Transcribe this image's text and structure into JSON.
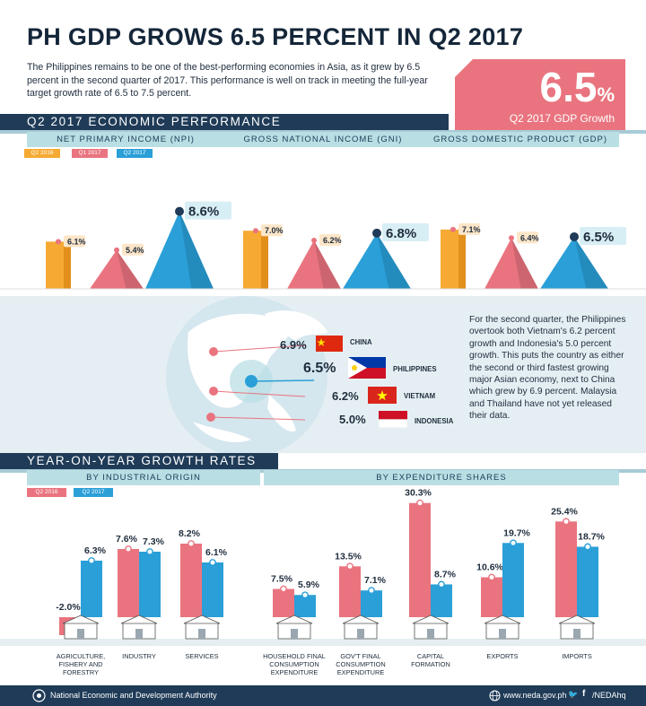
{
  "header": {
    "title": "PH GDP GROWS 6.5 PERCENT IN Q2 2017",
    "intro": "The Philippines remains to be one of the best-performing economies in Asia, as it grew by 6.5 percent in the second quarter of 2017. This performance is well on track in meeting the full-year target growth rate of 6.5 to 7.5 percent.",
    "hero_value": "6.5",
    "hero_unit": "%",
    "hero_caption": "Q2 2017 GDP Growth"
  },
  "colors": {
    "navy": "#1f3b57",
    "orange": "#f6aa33",
    "pink": "#e9747f",
    "blue": "#2a9fd8",
    "light_teal": "#b9dfe4"
  },
  "performance": {
    "section_title": "Q2 2017 ECONOMIC PERFORMANCE",
    "legend": [
      "Q2 2016",
      "Q1 2017",
      "Q2 2017"
    ],
    "groups": [
      {
        "name": "NET PRIMARY INCOME (NPI)",
        "labels": [
          "6.1%",
          "5.4%",
          "8.6%"
        ]
      },
      {
        "name": "GROSS NATIONAL INCOME (GNI)",
        "labels": [
          "7.0%",
          "6.2%",
          "6.8%"
        ]
      },
      {
        "name": "GROSS DOMESTIC PRODUCT (GDP)",
        "labels": [
          "7.1%",
          "6.4%",
          "6.5%"
        ]
      }
    ]
  },
  "chart_data": [
    {
      "type": "bar",
      "title": "Q2 2017 ECONOMIC PERFORMANCE",
      "categories": [
        "NET PRIMARY INCOME (NPI)",
        "GROSS NATIONAL INCOME (GNI)",
        "GROSS DOMESTIC PRODUCT (GDP)"
      ],
      "series": [
        {
          "name": "Q2 2016",
          "values": [
            6.1,
            7.0,
            7.1
          ]
        },
        {
          "name": "Q1 2017",
          "values": [
            5.4,
            6.2,
            6.4
          ]
        },
        {
          "name": "Q2 2017",
          "values": [
            8.6,
            6.8,
            6.5
          ]
        }
      ]
    },
    {
      "type": "bar",
      "title": "BY INDUSTRIAL ORIGIN",
      "categories": [
        "AGRICULTURE, FISHERY AND FORESTRY",
        "INDUSTRY",
        "SERVICES"
      ],
      "series": [
        {
          "name": "Q2 2016",
          "values": [
            -2.0,
            7.6,
            8.2
          ]
        },
        {
          "name": "Q2 2017",
          "values": [
            6.3,
            7.3,
            6.1
          ]
        }
      ]
    },
    {
      "type": "bar",
      "title": "BY EXPENDITURE SHARES",
      "categories": [
        "HOUSEHOLD FINAL CONSUMPTION EXPENDITURE",
        "GOV'T FINAL CONSUMPTION EXPENDITURE",
        "CAPITAL FORMATION",
        "EXPORTS",
        "IMPORTS"
      ],
      "series": [
        {
          "name": "Q2 2016",
          "values": [
            7.5,
            13.5,
            30.3,
            10.6,
            25.4
          ]
        },
        {
          "name": "Q2 2017",
          "values": [
            5.9,
            7.1,
            8.7,
            19.7,
            18.7
          ]
        }
      ]
    }
  ],
  "asia": {
    "countries": [
      {
        "value": "6.9%",
        "name": "CHINA"
      },
      {
        "value": "6.5%",
        "name": "PHILIPPINES"
      },
      {
        "value": "6.2%",
        "name": "VIETNAM"
      },
      {
        "value": "5.0%",
        "name": "INDONESIA"
      }
    ],
    "note": "For the second quarter, the Philippines overtook both Vietnam's 6.2 percent growth and Indonesia's 5.0 percent growth. This puts the country as either the second or third fastest growing major Asian economy, next to China which grew by 6.9 percent. Malaysia and Thailand have not yet released their data."
  },
  "yoy": {
    "section_title": "YEAR-ON-YEAR GROWTH RATES",
    "left_title": "BY INDUSTRIAL ORIGIN",
    "right_title": "BY EXPENDITURE SHARES",
    "legend": [
      "Q2 2016",
      "Q2 2017"
    ],
    "industry": [
      {
        "name": "AGRICULTURE,\nFISHERY AND\nFORESTRY",
        "labels": [
          "-2.0%",
          "6.3%"
        ]
      },
      {
        "name": "INDUSTRY",
        "labels": [
          "7.6%",
          "7.3%"
        ]
      },
      {
        "name": "SERVICES",
        "labels": [
          "8.2%",
          "6.1%"
        ]
      }
    ],
    "expenditure": [
      {
        "name": "HOUSEHOLD FINAL\nCONSUMPTION\nEXPENDITURE",
        "labels": [
          "7.5%",
          "5.9%"
        ]
      },
      {
        "name": "GOV'T FINAL\nCONSUMPTION\nEXPENDITURE",
        "labels": [
          "13.5%",
          "7.1%"
        ]
      },
      {
        "name": "CAPITAL\nFORMATION",
        "labels": [
          "30.3%",
          "8.7%"
        ]
      },
      {
        "name": "EXPORTS",
        "labels": [
          "10.6%",
          "19.7%"
        ]
      },
      {
        "name": "IMPORTS",
        "labels": [
          "25.4%",
          "18.7%"
        ]
      }
    ]
  },
  "footer": {
    "org": "National Economic and Development Authority",
    "site": "www.neda.gov.ph",
    "social": "/NEDAhq",
    "icons": [
      "neda-seal-icon",
      "globe-icon",
      "twitter-icon",
      "facebook-icon"
    ]
  }
}
